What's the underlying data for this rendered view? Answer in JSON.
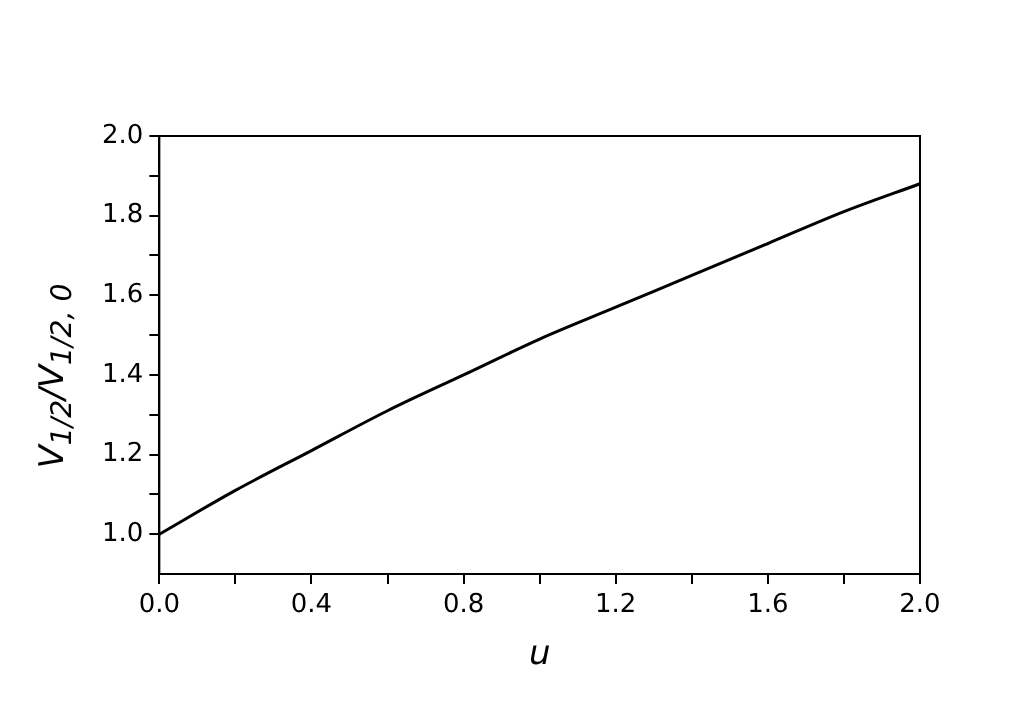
{
  "chart_data": {
    "type": "line",
    "xlabel": "u",
    "ylabel": "V$_{1/2}$/V$_{1/2, 0}$",
    "x": [
      0,
      0.2,
      0.4,
      0.6,
      0.8,
      1.0,
      1.2,
      1.4,
      1.6,
      1.8,
      2.0
    ],
    "series": [
      {
        "color": "#000000",
        "values": [
          1.0,
          1.11,
          1.21,
          1.31,
          1.4,
          1.49,
          1.57,
          1.65,
          1.73,
          1.81,
          1.88
        ]
      }
    ],
    "xlim": [
      0,
      2
    ],
    "ylim": [
      0.9,
      2
    ],
    "xticks": [
      {
        "value": 0,
        "label": "0.0"
      },
      {
        "value": 0.2,
        "label": null
      },
      {
        "value": 0.4,
        "label": "0.4"
      },
      {
        "value": 0.6,
        "label": null
      },
      {
        "value": 0.8,
        "label": "0.8"
      },
      {
        "value": 1.0,
        "label": null
      },
      {
        "value": 1.2,
        "label": "1.2"
      },
      {
        "value": 1.4,
        "label": null
      },
      {
        "value": 1.6,
        "label": "1.6"
      },
      {
        "value": 1.8,
        "label": null
      },
      {
        "value": 2,
        "label": "2.0"
      }
    ],
    "yticks": [
      {
        "value": 1,
        "label": "1.0"
      },
      {
        "value": 1.1,
        "label": null
      },
      {
        "value": 1.2,
        "label": "1.2"
      },
      {
        "value": 1.3,
        "label": null
      },
      {
        "value": 1.4,
        "label": "1.4"
      },
      {
        "value": 1.5,
        "label": null
      },
      {
        "value": 1.6,
        "label": "1.6"
      },
      {
        "value": 1.7,
        "label": null
      },
      {
        "value": 1.8,
        "label": "1.8"
      },
      {
        "value": 1.9,
        "label": null
      },
      {
        "value": 2,
        "label": "2.0"
      }
    ],
    "marker": "none",
    "line_style": "solid",
    "legend": false
  }
}
